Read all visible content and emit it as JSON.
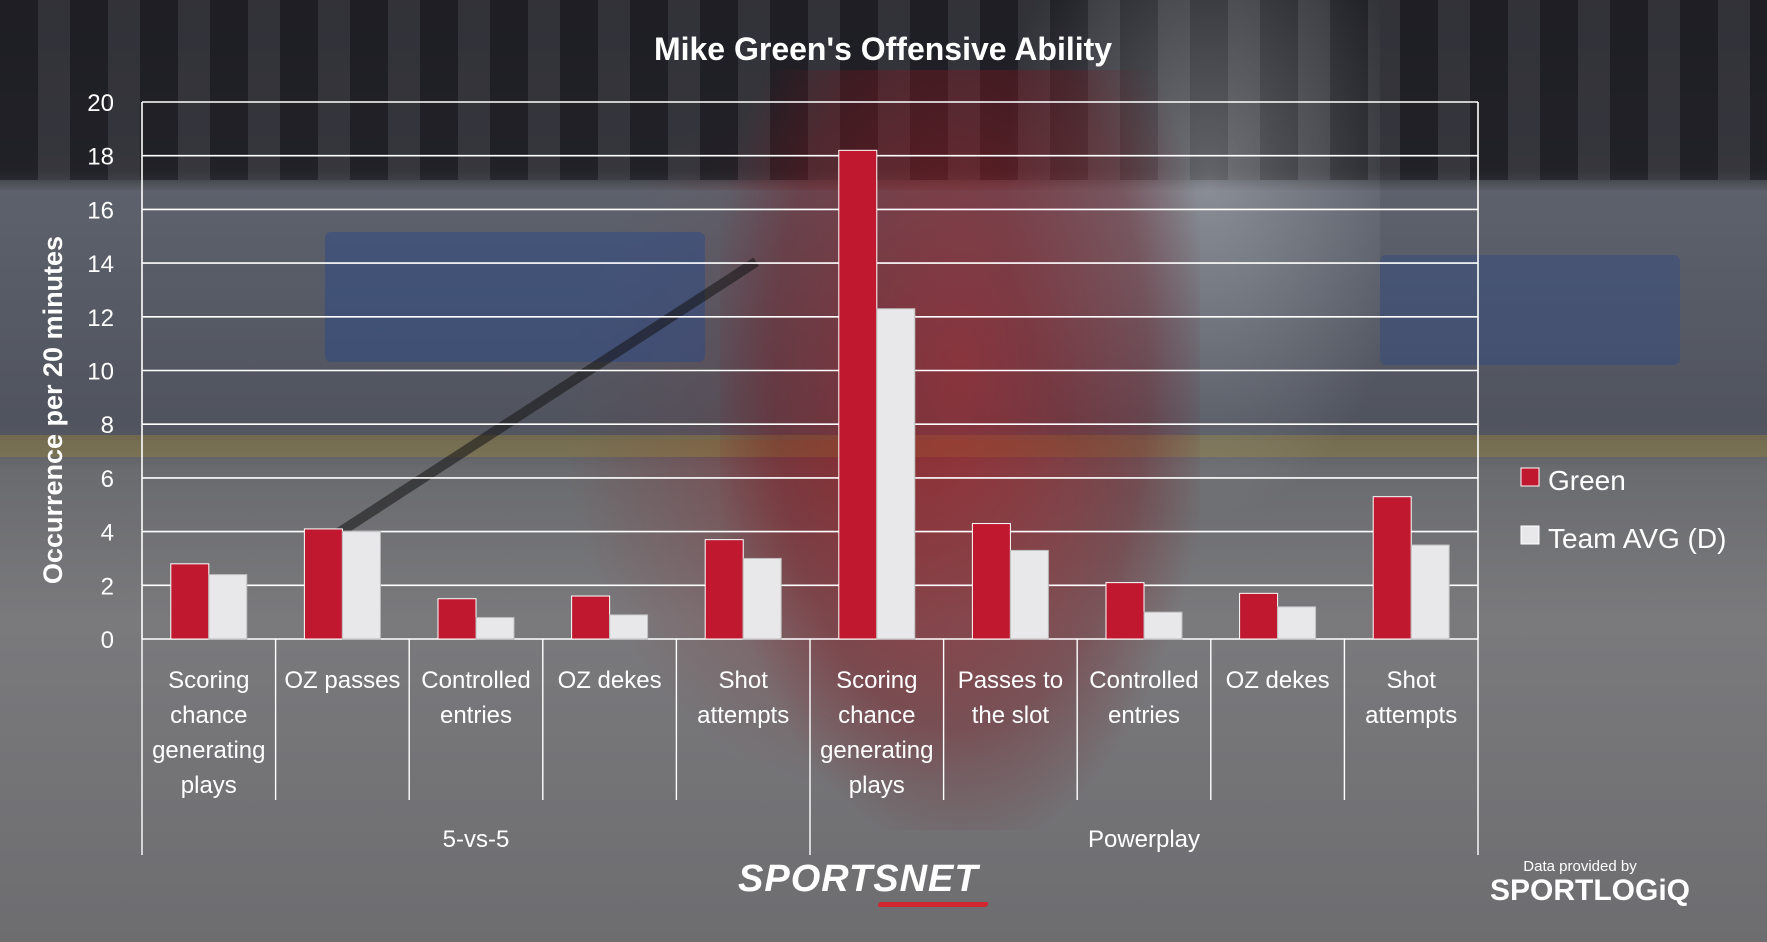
{
  "chart_data": {
    "type": "bar",
    "title": "Mike Green's Offensive Ability",
    "xlabel": "",
    "ylabel": "Occurrence per 20 minutes",
    "ylim": [
      0,
      20
    ],
    "yticks": [
      "0",
      "2",
      "4",
      "6",
      "8",
      "10",
      "12",
      "14",
      "16",
      "18",
      "20"
    ],
    "grid": true,
    "legend_position": "right",
    "categories": [
      "Scoring chance generating plays",
      "OZ passes",
      "Controlled entries",
      "OZ dekes",
      "Shot attempts",
      "Scoring chance generating plays",
      "Passes to the slot",
      "Controlled entries",
      "OZ dekes",
      "Shot attempts"
    ],
    "category_lines": [
      [
        "Scoring",
        "chance",
        "generating",
        "plays"
      ],
      [
        "OZ passes"
      ],
      [
        "Controlled",
        "entries"
      ],
      [
        "OZ dekes"
      ],
      [
        "Shot",
        "attempts"
      ],
      [
        "Scoring",
        "chance",
        "generating",
        "plays"
      ],
      [
        "Passes to",
        "the slot"
      ],
      [
        "Controlled",
        "entries"
      ],
      [
        "OZ dekes"
      ],
      [
        "Shot",
        "attempts"
      ]
    ],
    "groups": [
      {
        "label": "5-vs-5",
        "categories": 5
      },
      {
        "label": "Powerplay",
        "categories": 5
      }
    ],
    "series": [
      {
        "name": "Green",
        "color": "#c0182f",
        "values": [
          2.8,
          4.1,
          1.5,
          1.6,
          3.7,
          18.2,
          4.3,
          2.1,
          1.7,
          5.3
        ]
      },
      {
        "name": "Team AVG (D)",
        "color": "#e8e8ea",
        "values": [
          2.4,
          4.0,
          0.8,
          0.9,
          3.0,
          12.3,
          3.3,
          1.0,
          1.2,
          3.5
        ]
      }
    ]
  },
  "branding": {
    "sportsnet": "SPORTSNET",
    "credit_caption": "Data provided by",
    "credit_logo": "SPORTLOGiQ"
  }
}
